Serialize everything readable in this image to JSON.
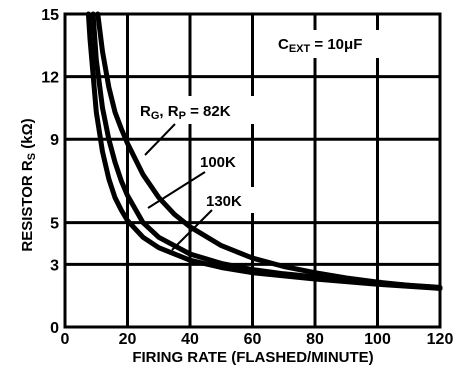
{
  "chart_data": {
    "type": "line",
    "xlabel": "FIRING RATE (FLASHED/MINUTE)",
    "ylabel": {
      "main": "RESISTOR R",
      "sub": "S",
      "unit": " (kΩ)"
    },
    "xlim": [
      0,
      120
    ],
    "ylim": [
      0,
      15
    ],
    "x_ticks": [
      0,
      20,
      40,
      60,
      80,
      100,
      120
    ],
    "y_ticks": [
      0,
      3,
      5,
      9,
      12,
      15
    ],
    "grid": true,
    "annotation_cext": {
      "main": "C",
      "sub": "EXT",
      "rest": " = 10μF"
    },
    "series": [
      {
        "name": "RG, RP = 82K",
        "label_parts": {
          "r1": "R",
          "s1": "G",
          "mid": ", R",
          "s2": "P",
          "end": " = 82K"
        },
        "x": [
          10.5,
          12,
          14,
          16,
          18,
          20,
          25,
          30,
          35,
          40,
          50,
          60,
          70,
          80,
          90,
          100,
          110,
          120
        ],
        "y": [
          15,
          13.2,
          11.5,
          10.3,
          9.5,
          8.8,
          7.3,
          6.2,
          5.4,
          4.8,
          3.9,
          3.3,
          2.9,
          2.6,
          2.35,
          2.15,
          2.0,
          1.85
        ]
      },
      {
        "name": "100K",
        "label": "100K",
        "x": [
          9.0,
          10,
          12,
          14,
          16,
          18,
          20,
          25,
          30,
          40,
          50,
          60,
          70,
          80,
          100,
          120
        ],
        "y": [
          15,
          12.8,
          10.5,
          9.0,
          7.9,
          7.0,
          6.3,
          5.0,
          4.3,
          3.5,
          3.05,
          2.75,
          2.55,
          2.4,
          2.1,
          1.9
        ]
      },
      {
        "name": "130K",
        "label": "130K",
        "x": [
          7.5,
          8,
          10,
          12,
          14,
          16,
          18,
          20,
          25,
          30,
          40,
          50,
          60,
          80,
          100,
          120
        ],
        "y": [
          15,
          13.8,
          10.3,
          8.4,
          7.1,
          6.2,
          5.6,
          5.1,
          4.3,
          3.8,
          3.2,
          2.85,
          2.6,
          2.3,
          2.05,
          1.85
        ]
      }
    ]
  }
}
